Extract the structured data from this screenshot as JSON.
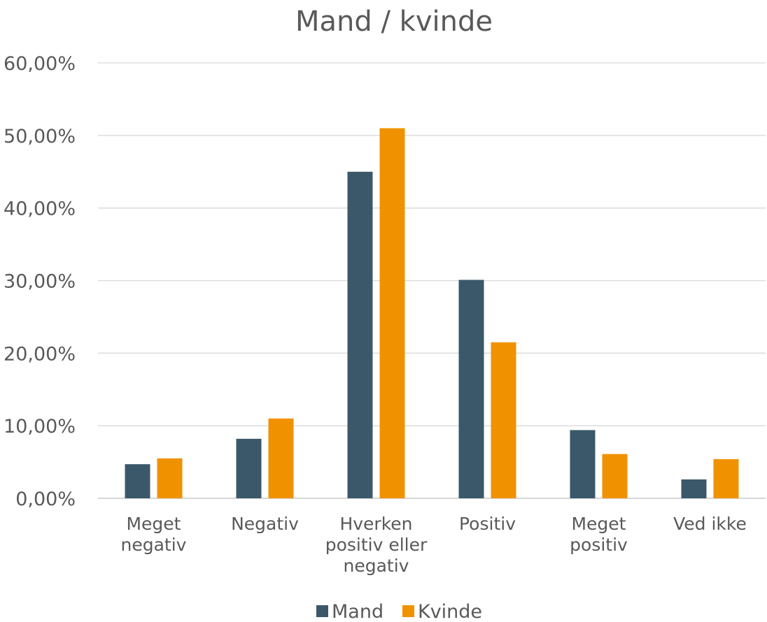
{
  "chart_data": {
    "type": "bar",
    "title": "Mand / kvinde",
    "xlabel": "",
    "ylabel": "",
    "ylim": [
      0,
      60
    ],
    "yticks": [
      "0,00%",
      "10,00%",
      "20,00%",
      "30,00%",
      "40,00%",
      "50,00%",
      "60,00%"
    ],
    "categories": [
      [
        "Meget",
        "negativ"
      ],
      [
        "Negativ"
      ],
      [
        "Hverken",
        "positiv eller",
        "negativ"
      ],
      [
        "Positiv"
      ],
      [
        "Meget",
        "positiv"
      ],
      [
        "Ved ikke"
      ]
    ],
    "series": [
      {
        "name": "Mand",
        "color": "#3a5869",
        "values": [
          4.7,
          8.2,
          45.0,
          30.1,
          9.4,
          2.6
        ]
      },
      {
        "name": "Kvinde",
        "color": "#f09200",
        "values": [
          5.5,
          11.0,
          51.0,
          21.5,
          6.1,
          5.4
        ]
      }
    ],
    "grid": true,
    "legend_position": "bottom"
  }
}
